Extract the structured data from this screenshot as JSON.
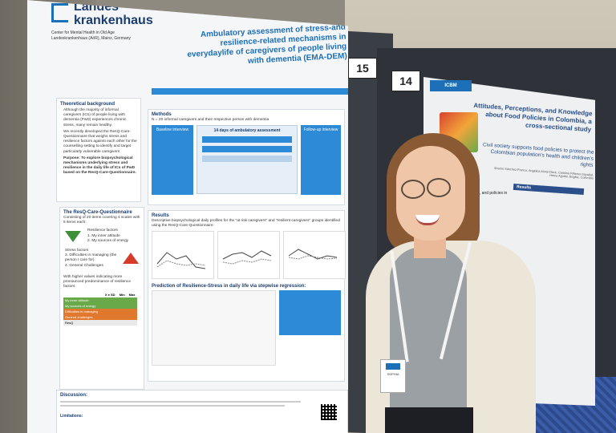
{
  "poster": {
    "logo_line1": "Landes",
    "logo_line2": "krankenhaus",
    "institution": "Center for Mental Health in Old Age Landeskrankenhaus (AöR), Mainz, Germany",
    "title": "Ambulatory assessment of stress-and resilience-related mechanisms in everydaylife of caregivers of people living with dementia (EMA-DEM)",
    "board_number": "15",
    "theoretical_background": {
      "heading": "Theoretical background",
      "bullets": [
        "Although the majority of informal caregivers (ICs) of people living with dementia (PwD) experiences chronic stress, many remain healthy.",
        "We recently developed the ResQ-Care-Questionnaire that weighs stress and resilience factors against each other for the counselling setting to identify and target particularly vulnerable caregivers",
        "Purpose: To explore biopsychological mechanisms underlying stress and resilience in the daily life of ICs of PwD based on the ResQ-Care-Questionnaire."
      ]
    },
    "resq": {
      "heading": "The ResQ-Care-Questionnaire",
      "desc": "Consisting of 20 items covering 4 scales with 5 items each:",
      "resilience_label": "Resilience factors",
      "resilience_items": [
        "1. My inner attitude",
        "2. My sources of energy"
      ],
      "stress_label": "Stress factors",
      "stress_items": [
        "3. Difficulties in managing (the person I care for)",
        "4. General Challenges"
      ],
      "note": "With higher values indicating more pronounced predominance of resilience factors",
      "table_headers": [
        "",
        "X ± SD",
        "Min",
        "Max"
      ],
      "table_rows": [
        [
          "My inner attitude",
          "",
          "",
          ""
        ],
        [
          "My sources of energy",
          "",
          "",
          ""
        ],
        [
          "Difficulties in managing",
          "",
          "",
          ""
        ],
        [
          "General challenges",
          "",
          "",
          ""
        ],
        [
          "ResQ",
          "",
          "",
          ""
        ]
      ]
    },
    "methods": {
      "heading": "Methods",
      "desc": "N = 20 informal caregivers and their respective person with dementia",
      "baseline_label": "Baseline interview",
      "ambulatory_label": "14 days of ambulatory assessment",
      "followup_label": "Follow-up interview"
    },
    "results": {
      "heading": "Results",
      "desc": "Descriptive biopsychological daily profiles for the \"at risk caregivers\" and \"resilient caregivers\" groups identified using the ResQ-Care-Questionnaire:",
      "prediction_heading": "Prediction of Resilience-Stress in daily life via stepwise regression:"
    },
    "discussion": {
      "heading": "Discussion:",
      "limitations": "Limitations:"
    }
  },
  "poster2": {
    "logo": "ICBM",
    "board_number": "14",
    "title": "Attitudes, Perceptions, and Knowledge about Food Policies in Colombia, a cross-sectional study",
    "subtitle": "Civil society supports food policies to protect the Colombian population's health and children's rights",
    "authors": "Sharon Sánchez-Franco, Angélica Mora-Cleck, Carolina Piñeros-Sayabal, Hemy Aguilar, Brigitte, Colombia",
    "results_label": "Results",
    "policy_text": "perceptions, and policies in Colombia"
  },
  "badge": {
    "text": "SOPHIA"
  },
  "colors": {
    "poster_blue": "#1d6fb8",
    "poster_navy": "#1a3d6e",
    "resilience_green": "#3f8f3a",
    "stress_red": "#d63b2a",
    "table_green": "#6aa94a",
    "table_orange": "#e0782e"
  }
}
